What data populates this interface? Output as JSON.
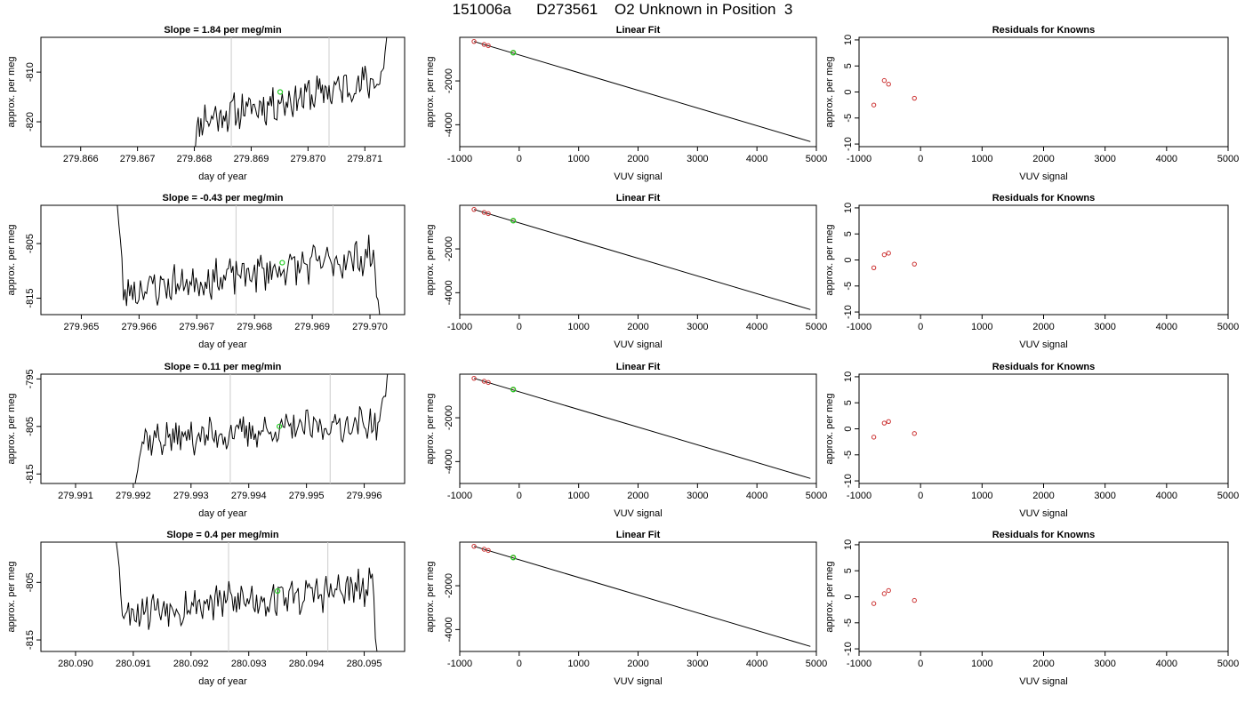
{
  "page": {
    "title": "151006a      D273561    O2 Unknown in Position  3"
  },
  "chart_data": [
    {
      "type": "line",
      "row": 0,
      "col": 0,
      "title": "Slope =  1.84  per meg/min",
      "xlabel": "day of year",
      "ylabel": "approx. per meg",
      "xlim": [
        279.8653,
        279.8717
      ],
      "ylim": [
        -825,
        -803
      ],
      "xticks": [
        279.866,
        279.867,
        279.868,
        279.869,
        279.87,
        279.871
      ],
      "xtick_labels": [
        "279.866",
        "279.867",
        "279.868",
        "279.869",
        "279.870",
        "279.871"
      ],
      "yticks": [
        -820,
        -810
      ],
      "ytick_labels": [
        "-820",
        "-810"
      ],
      "vlines": [
        279.86865,
        279.87037
      ],
      "marker": {
        "x": 279.86951,
        "y": -814.0,
        "color": "#22cc22"
      },
      "trace": {
        "x_start": 279.86795,
        "x_end": 279.87145,
        "n": 150,
        "base": -820,
        "end": -811,
        "jump_start": -828,
        "jump_end": -795,
        "amp": 3.2,
        "seed": 11
      }
    },
    {
      "type": "line",
      "row": 1,
      "col": 0,
      "title": "Slope =  -0.43  per meg/min",
      "xlabel": "day of year",
      "ylabel": "approx. per meg",
      "xlim": [
        279.9643,
        279.9706
      ],
      "ylim": [
        -818,
        -798
      ],
      "xticks": [
        279.965,
        279.966,
        279.967,
        279.968,
        279.969,
        279.97
      ],
      "xtick_labels": [
        "279.965",
        "279.966",
        "279.967",
        "279.968",
        "279.969",
        "279.970"
      ],
      "yticks": [
        -815,
        -805
      ],
      "ytick_labels": [
        "-815",
        "-805"
      ],
      "vlines": [
        279.96768,
        279.96936
      ],
      "marker": {
        "x": 279.96848,
        "y": -808.5,
        "color": "#22cc22"
      },
      "trace": {
        "x_start": 279.96557,
        "x_end": 279.97022,
        "n": 175,
        "base": -814,
        "end": -807,
        "jump_start": -790,
        "jump_end": -825,
        "amp": 3.0,
        "seed": 23
      }
    },
    {
      "type": "line",
      "row": 2,
      "col": 0,
      "title": "Slope =  0.11  per meg/min",
      "xlabel": "day of year",
      "ylabel": "approx. per meg",
      "xlim": [
        279.9904,
        279.9967
      ],
      "ylim": [
        -817,
        -794
      ],
      "xticks": [
        279.991,
        279.992,
        279.993,
        279.994,
        279.995,
        279.996
      ],
      "xtick_labels": [
        "279.991",
        "279.992",
        "279.993",
        "279.994",
        "279.995",
        "279.996"
      ],
      "yticks": [
        -815,
        -805,
        -795
      ],
      "ytick_labels": [
        "-815",
        "-805",
        "-795"
      ],
      "vlines": [
        279.99368,
        279.99541
      ],
      "marker": {
        "x": 279.99453,
        "y": -805.0,
        "color": "#22cc22"
      },
      "trace": {
        "x_start": 279.99197,
        "x_end": 279.99645,
        "n": 170,
        "base": -808,
        "end": -804,
        "jump_start": -822,
        "jump_end": -790,
        "amp": 3.0,
        "seed": 37
      }
    },
    {
      "type": "line",
      "row": 3,
      "col": 0,
      "title": "Slope =  0.4  per meg/min",
      "xlabel": "day of year",
      "ylabel": "approx. per meg",
      "xlim": [
        280.0894,
        280.0957
      ],
      "ylim": [
        -817,
        -798
      ],
      "xticks": [
        280.09,
        280.091,
        280.092,
        280.093,
        280.094,
        280.095
      ],
      "xtick_labels": [
        "280.090",
        "280.091",
        "280.092",
        "280.093",
        "280.094",
        "280.095"
      ],
      "yticks": [
        -815,
        -805
      ],
      "ytick_labels": [
        "-815",
        "-805"
      ],
      "vlines": [
        280.09265,
        280.09437
      ],
      "marker": {
        "x": 280.0935,
        "y": -806.5,
        "color": "#22cc22"
      },
      "trace": {
        "x_start": 280.09065,
        "x_end": 280.0953,
        "n": 175,
        "base": -810,
        "end": -806,
        "jump_start": -790,
        "jump_end": -825,
        "amp": 3.0,
        "seed": 53
      }
    },
    {
      "type": "line",
      "row": 0,
      "col": 1,
      "title": "Linear Fit",
      "xlabel": "VUV signal",
      "ylabel": "approx. per meg",
      "xlim": [
        -1000,
        5000
      ],
      "ylim": [
        -5000,
        -10
      ],
      "xticks": [
        -1000,
        0,
        1000,
        2000,
        3000,
        4000,
        5000
      ],
      "xtick_labels": [
        "-1000",
        "0",
        "1000",
        "2000",
        "3000",
        "4000",
        "5000"
      ],
      "yticks": [
        -2000,
        -4000
      ],
      "ytick_labels": [
        "-2000",
        "-4000"
      ],
      "fit_line": {
        "x": [
          -760,
          4900
        ],
        "y": [
          -200,
          -4770
        ]
      },
      "knowns": {
        "x": [
          -760,
          -590,
          -520,
          -100
        ],
        "y": [
          -200,
          -335,
          -390,
          -720
        ]
      },
      "unknown": {
        "x": -100,
        "y": -710
      }
    },
    {
      "type": "line",
      "row": 1,
      "col": 1,
      "title": "Linear Fit",
      "xlabel": "VUV signal",
      "ylabel": "approx. per meg",
      "xlim": [
        -1000,
        5000
      ],
      "ylim": [
        -5000,
        -10
      ],
      "xticks": [
        -1000,
        0,
        1000,
        2000,
        3000,
        4000,
        5000
      ],
      "xtick_labels": [
        "-1000",
        "0",
        "1000",
        "2000",
        "3000",
        "4000",
        "5000"
      ],
      "yticks": [
        -2000,
        -4000
      ],
      "ytick_labels": [
        "-2000",
        "-4000"
      ],
      "fit_line": {
        "x": [
          -760,
          4900
        ],
        "y": [
          -200,
          -4770
        ]
      },
      "knowns": {
        "x": [
          -760,
          -590,
          -520,
          -100
        ],
        "y": [
          -200,
          -335,
          -390,
          -720
        ]
      },
      "unknown": {
        "x": -100,
        "y": -710
      }
    },
    {
      "type": "line",
      "row": 2,
      "col": 1,
      "title": "Linear Fit",
      "xlabel": "VUV signal",
      "ylabel": "approx. per meg",
      "xlim": [
        -1000,
        5000
      ],
      "ylim": [
        -5000,
        -10
      ],
      "xticks": [
        -1000,
        0,
        1000,
        2000,
        3000,
        4000,
        5000
      ],
      "xtick_labels": [
        "-1000",
        "0",
        "1000",
        "2000",
        "3000",
        "4000",
        "5000"
      ],
      "yticks": [
        -2000,
        -4000
      ],
      "ytick_labels": [
        "-2000",
        "-4000"
      ],
      "fit_line": {
        "x": [
          -760,
          4900
        ],
        "y": [
          -200,
          -4770
        ]
      },
      "knowns": {
        "x": [
          -760,
          -590,
          -520,
          -100
        ],
        "y": [
          -200,
          -335,
          -390,
          -720
        ]
      },
      "unknown": {
        "x": -100,
        "y": -710
      }
    },
    {
      "type": "line",
      "row": 3,
      "col": 1,
      "title": "Linear Fit",
      "xlabel": "VUV signal",
      "ylabel": "approx. per meg",
      "xlim": [
        -1000,
        5000
      ],
      "ylim": [
        -5000,
        -10
      ],
      "xticks": [
        -1000,
        0,
        1000,
        2000,
        3000,
        4000,
        5000
      ],
      "xtick_labels": [
        "-1000",
        "0",
        "1000",
        "2000",
        "3000",
        "4000",
        "5000"
      ],
      "yticks": [
        -2000,
        -4000
      ],
      "ytick_labels": [
        "-2000",
        "-4000"
      ],
      "fit_line": {
        "x": [
          -760,
          4900
        ],
        "y": [
          -200,
          -4770
        ]
      },
      "knowns": {
        "x": [
          -760,
          -590,
          -520,
          -100
        ],
        "y": [
          -200,
          -335,
          -390,
          -720
        ]
      },
      "unknown": {
        "x": -100,
        "y": -710
      }
    },
    {
      "type": "scatter",
      "row": 0,
      "col": 2,
      "title": "Residuals for Knowns",
      "xlabel": "VUV signal",
      "ylabel": "approx. per meg",
      "xlim": [
        -1000,
        5000
      ],
      "ylim": [
        -10.5,
        10.5
      ],
      "xticks": [
        -1000,
        0,
        1000,
        2000,
        3000,
        4000,
        5000
      ],
      "xtick_labels": [
        "-1000",
        "0",
        "1000",
        "2000",
        "3000",
        "4000",
        "5000"
      ],
      "yticks": [
        -10,
        -5,
        0,
        5,
        10
      ],
      "ytick_labels": [
        "-10",
        "-5",
        "0",
        "5",
        "10"
      ],
      "points": {
        "x": [
          -760,
          -590,
          -520,
          -100
        ],
        "y": [
          -2.5,
          2.2,
          1.5,
          -1.2
        ]
      }
    },
    {
      "type": "scatter",
      "row": 1,
      "col": 2,
      "title": "Residuals for Knowns",
      "xlabel": "VUV signal",
      "ylabel": "approx. per meg",
      "xlim": [
        -1000,
        5000
      ],
      "ylim": [
        -10.5,
        10.5
      ],
      "xticks": [
        -1000,
        0,
        1000,
        2000,
        3000,
        4000,
        5000
      ],
      "xtick_labels": [
        "-1000",
        "0",
        "1000",
        "2000",
        "3000",
        "4000",
        "5000"
      ],
      "yticks": [
        -10,
        -5,
        0,
        5,
        10
      ],
      "ytick_labels": [
        "-10",
        "-5",
        "0",
        "5",
        "10"
      ],
      "points": {
        "x": [
          -760,
          -590,
          -520,
          -100
        ],
        "y": [
          -1.5,
          1.0,
          1.3,
          -0.8
        ]
      }
    },
    {
      "type": "scatter",
      "row": 2,
      "col": 2,
      "title": "Residuals for Knowns",
      "xlabel": "VUV signal",
      "ylabel": "approx. per meg",
      "xlim": [
        -1000,
        5000
      ],
      "ylim": [
        -10.5,
        10.5
      ],
      "xticks": [
        -1000,
        0,
        1000,
        2000,
        3000,
        4000,
        5000
      ],
      "xtick_labels": [
        "-1000",
        "0",
        "1000",
        "2000",
        "3000",
        "4000",
        "5000"
      ],
      "yticks": [
        -10,
        -5,
        0,
        5,
        10
      ],
      "ytick_labels": [
        "-10",
        "-5",
        "0",
        "5",
        "10"
      ],
      "points": {
        "x": [
          -760,
          -590,
          -520,
          -100
        ],
        "y": [
          -1.6,
          1.1,
          1.4,
          -0.9
        ]
      }
    },
    {
      "type": "scatter",
      "row": 3,
      "col": 2,
      "title": "Residuals for Knowns",
      "xlabel": "VUV signal",
      "ylabel": "approx. per meg",
      "xlim": [
        -1000,
        5000
      ],
      "ylim": [
        -10.5,
        10.5
      ],
      "xticks": [
        -1000,
        0,
        1000,
        2000,
        3000,
        4000,
        5000
      ],
      "xtick_labels": [
        "-1000",
        "0",
        "1000",
        "2000",
        "3000",
        "4000",
        "5000"
      ],
      "yticks": [
        -10,
        -5,
        0,
        5,
        10
      ],
      "ytick_labels": [
        "-10",
        "-5",
        "0",
        "5",
        "10"
      ],
      "points": {
        "x": [
          -760,
          -590,
          -520,
          -100
        ],
        "y": [
          -1.3,
          0.6,
          1.2,
          -0.7
        ]
      }
    }
  ],
  "colors": {
    "axis": "#000000",
    "trace": "#000000",
    "vline": "#cccccc",
    "known_point": "#cc3333",
    "unknown_point": "#22cc22"
  }
}
